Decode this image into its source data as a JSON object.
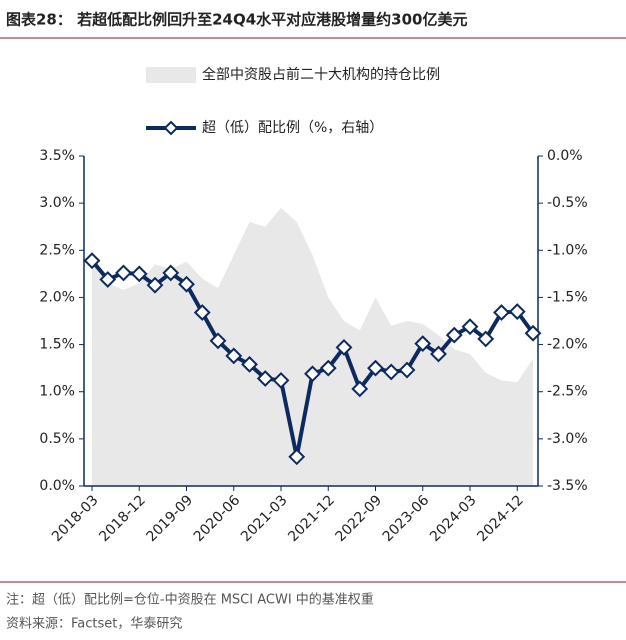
{
  "chart_data": {
    "type": "area-line",
    "title": "图表28： 若超低配比例回升至24Q4水平对应港股增量约300亿美元",
    "categories": [
      "2018-03",
      null,
      null,
      "2018-12",
      null,
      null,
      "2019-09",
      null,
      null,
      "2020-06",
      null,
      null,
      "2021-03",
      null,
      null,
      "2021-12",
      null,
      null,
      "2022-09",
      null,
      null,
      "2023-06",
      null,
      null,
      "2024-03",
      null,
      null,
      "2024-12",
      null
    ],
    "series": [
      {
        "name": "全部中资股占前二十大机构的持仓比例",
        "color": "#e8e8e8",
        "kind": "area",
        "axis": "y",
        "values": [
          2.4,
          2.15,
          2.08,
          2.15,
          2.35,
          2.3,
          2.38,
          2.2,
          2.1,
          2.45,
          2.8,
          2.75,
          2.95,
          2.8,
          2.45,
          2.0,
          1.75,
          1.65,
          2.0,
          1.7,
          1.75,
          1.72,
          1.6,
          1.45,
          1.4,
          1.2,
          1.12,
          1.1,
          1.35
        ]
      },
      {
        "name": "超（低）配比例（%，右轴）",
        "color": "#0d2a5e",
        "kind": "line",
        "axis": "y2",
        "values": [
          -1.11,
          -1.31,
          -1.24,
          -1.25,
          -1.37,
          -1.24,
          -1.36,
          -1.66,
          -1.96,
          -2.12,
          -2.21,
          -2.36,
          -2.38,
          -3.19,
          -2.31,
          -2.25,
          -2.03,
          -2.47,
          -2.25,
          -2.29,
          -2.27,
          -1.99,
          -2.1,
          -1.9,
          -1.81,
          -1.94,
          -1.66,
          -1.65,
          -1.88
        ]
      }
    ],
    "ylim": [
      0,
      3.5
    ],
    "yticks": [
      {
        "value": 0,
        "label": "0.0%"
      },
      {
        "value": 0.5,
        "label": "0.5%"
      },
      {
        "value": 1,
        "label": "1.0%"
      },
      {
        "value": 1.5,
        "label": "1.5%"
      },
      {
        "value": 2,
        "label": "2.0%"
      },
      {
        "value": 2.5,
        "label": "2.5%"
      },
      {
        "value": 3,
        "label": "3.0%"
      },
      {
        "value": 3.5,
        "label": "3.5%"
      }
    ],
    "y2lim": [
      -3.5,
      0
    ],
    "y2ticks": [
      {
        "value": -3.5,
        "label": "-3.5%"
      },
      {
        "value": -3,
        "label": "-3.0%"
      },
      {
        "value": -2.5,
        "label": "-2.5%"
      },
      {
        "value": -2,
        "label": "-2.0%"
      },
      {
        "value": -1.5,
        "label": "-1.5%"
      },
      {
        "value": -1,
        "label": "-1.0%"
      },
      {
        "value": -0.5,
        "label": "-0.5%"
      },
      {
        "value": 0,
        "label": "0.0%"
      }
    ],
    "notes": "注：超（低）配比例=仓位-中资股在 MSCI ACWI 中的基准权重",
    "source": "资料来源：Factset，华泰研究"
  }
}
